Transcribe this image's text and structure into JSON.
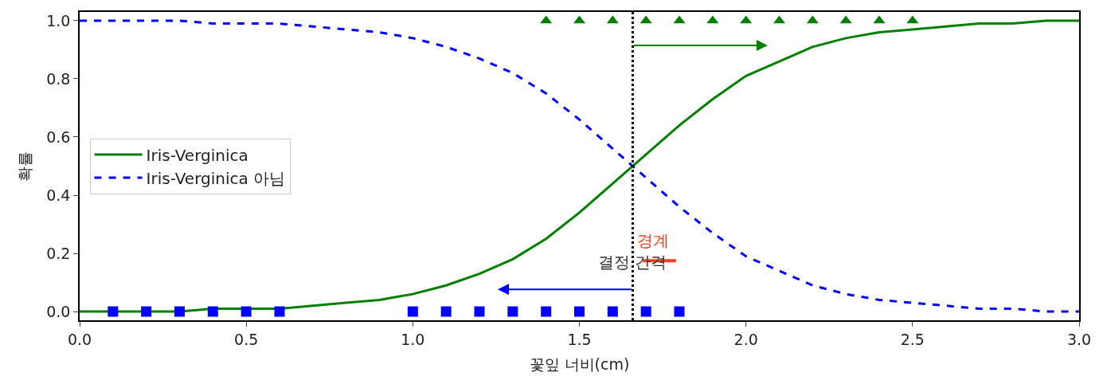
{
  "chart_data": {
    "type": "line",
    "xlabel": "꽃잎 너비(cm)",
    "ylabel": "확률",
    "x": [
      0.0,
      0.1,
      0.2,
      0.3,
      0.4,
      0.5,
      0.6,
      0.7,
      0.8,
      0.9,
      1.0,
      1.1,
      1.2,
      1.3,
      1.4,
      1.5,
      1.6,
      1.7,
      1.8,
      1.9,
      2.0,
      2.1,
      2.2,
      2.3,
      2.4,
      2.5,
      2.6,
      2.7,
      2.8,
      2.9,
      3.0
    ],
    "series": [
      {
        "name": "Iris-Verginica",
        "color": "#008000",
        "line_style": "solid",
        "values": [
          0,
          0,
          0,
          0,
          0.01,
          0.01,
          0.01,
          0.02,
          0.03,
          0.04,
          0.06,
          0.09,
          0.13,
          0.18,
          0.25,
          0.34,
          0.44,
          0.54,
          0.64,
          0.73,
          0.81,
          0.86,
          0.91,
          0.94,
          0.96,
          0.97,
          0.98,
          0.99,
          0.99,
          1.0,
          1.0
        ]
      },
      {
        "name": "Iris-Verginica 아님",
        "color": "#0000ff",
        "line_style": "dashed",
        "values": [
          1.0,
          1.0,
          1.0,
          1.0,
          0.99,
          0.99,
          0.99,
          0.98,
          0.97,
          0.96,
          0.94,
          0.91,
          0.87,
          0.82,
          0.75,
          0.66,
          0.56,
          0.46,
          0.36,
          0.27,
          0.19,
          0.14,
          0.09,
          0.06,
          0.04,
          0.03,
          0.02,
          0.01,
          0.01,
          0,
          0
        ]
      },
      {
        "type": "scatter",
        "marker": "square",
        "color": "#0000ff",
        "x": [
          0.1,
          0.2,
          0.3,
          0.4,
          0.5,
          0.6,
          1.0,
          1.1,
          1.2,
          1.3,
          1.4,
          1.5,
          1.6,
          1.7,
          1.8
        ],
        "values": [
          0,
          0,
          0,
          0,
          0,
          0,
          0,
          0,
          0,
          0,
          0,
          0,
          0,
          0,
          0
        ]
      },
      {
        "type": "scatter",
        "marker": "triangle",
        "color": "#008000",
        "x": [
          1.4,
          1.5,
          1.6,
          1.7,
          1.8,
          1.9,
          2.0,
          2.1,
          2.2,
          2.3,
          2.4,
          2.5
        ],
        "values": [
          1,
          1,
          1,
          1,
          1,
          1,
          1,
          1,
          1,
          1,
          1,
          1
        ]
      }
    ],
    "xlim": [
      0,
      3
    ],
    "xticks": [
      {
        "value": 0,
        "label": "0.0"
      },
      {
        "value": 0.5,
        "label": "0.5"
      },
      {
        "value": 1,
        "label": "1.0"
      },
      {
        "value": 1.5,
        "label": "1.5"
      },
      {
        "value": 2,
        "label": "2.0"
      },
      {
        "value": 2.5,
        "label": "2.5"
      },
      {
        "value": 3,
        "label": "3.0"
      }
    ],
    "ylim": [
      -0.03,
      1.03
    ],
    "yticks": [
      {
        "value": 0,
        "label": "0.0"
      },
      {
        "value": 0.2,
        "label": "0.2"
      },
      {
        "value": 0.4,
        "label": "0.4"
      },
      {
        "value": 0.6,
        "label": "0.6"
      },
      {
        "value": 0.8,
        "label": "0.8"
      },
      {
        "value": 1,
        "label": "1.0"
      }
    ],
    "ref_lines": [
      {
        "axis": "x",
        "value": 1.66,
        "color": "#000000",
        "line_style": "dotted"
      }
    ],
    "annotations": [
      {
        "text": "결정 간격",
        "x": 1.66,
        "y": 0.17
      },
      "경계"
    ],
    "legend": "left"
  }
}
